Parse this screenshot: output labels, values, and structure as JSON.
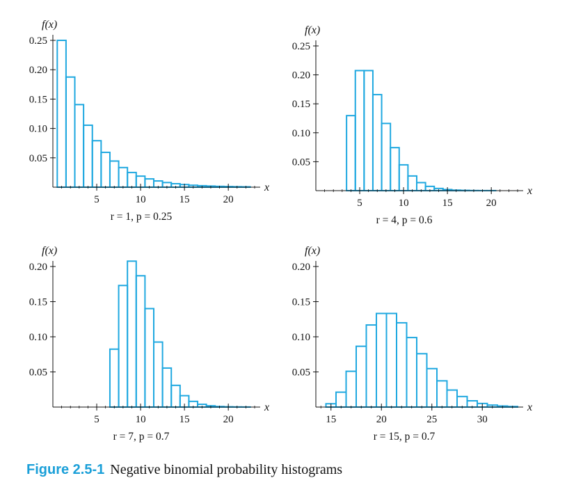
{
  "figure": {
    "label": "Figure 2.5-1",
    "caption": "Negative binomial probability histograms"
  },
  "colors": {
    "bar": "#1fa8e0",
    "axis": "#111111"
  },
  "chart_data": [
    {
      "type": "bar",
      "ylabel": "f(x)",
      "xlabel": "x",
      "subtitle": "r = 1, p = 0.25",
      "xlim": [
        0,
        23
      ],
      "ylim": [
        0,
        0.25
      ],
      "xticks": [
        5,
        10,
        15,
        20
      ],
      "yticks": [
        0.05,
        0.1,
        0.15,
        0.2,
        0.25
      ],
      "ytick_labels": [
        "0.05",
        "0.10",
        "0.15",
        "0.20",
        "0.25"
      ],
      "x": [
        1,
        2,
        3,
        4,
        5,
        6,
        7,
        8,
        9,
        10,
        11,
        12,
        13,
        14,
        15,
        16,
        17,
        18,
        19,
        20,
        21,
        22
      ],
      "values": [
        0.25,
        0.1875,
        0.1406,
        0.1055,
        0.0791,
        0.0593,
        0.0445,
        0.0334,
        0.025,
        0.0188,
        0.0141,
        0.0106,
        0.0079,
        0.0059,
        0.0045,
        0.0033,
        0.0025,
        0.0019,
        0.0014,
        0.0011,
        0.0008,
        0.0006
      ]
    },
    {
      "type": "bar",
      "ylabel": "f(x)",
      "xlabel": "x",
      "subtitle": "r = 4, p = 0.6",
      "xlim": [
        0,
        23
      ],
      "ylim": [
        0,
        0.25
      ],
      "xticks": [
        5,
        10,
        15,
        20
      ],
      "yticks": [
        0.05,
        0.1,
        0.15,
        0.2,
        0.25
      ],
      "ytick_labels": [
        "0.05",
        "0.10",
        "0.15",
        "0.20",
        "0.25"
      ],
      "x": [
        4,
        5,
        6,
        7,
        8,
        9,
        10,
        11,
        12,
        13,
        14,
        15,
        16,
        17,
        18,
        19,
        20
      ],
      "values": [
        0.1296,
        0.2074,
        0.2074,
        0.1659,
        0.1161,
        0.0743,
        0.0446,
        0.0254,
        0.0139,
        0.0074,
        0.0038,
        0.0019,
        0.0009,
        0.0005,
        0.0002,
        0.0001,
        0.0001
      ]
    },
    {
      "type": "bar",
      "ylabel": "f(x)",
      "xlabel": "x",
      "subtitle": "r = 7, p = 0.7",
      "xlim": [
        0,
        23
      ],
      "ylim": [
        0,
        0.2
      ],
      "xticks": [
        5,
        10,
        15,
        20
      ],
      "yticks": [
        0.05,
        0.1,
        0.15,
        0.2
      ],
      "ytick_labels": [
        "0.05",
        "0.10",
        "0.15",
        "0.20"
      ],
      "x": [
        7,
        8,
        9,
        10,
        11,
        12,
        13,
        14,
        15,
        16,
        17,
        18,
        19,
        20,
        21,
        22
      ],
      "values": [
        0.0824,
        0.173,
        0.2076,
        0.1868,
        0.1401,
        0.0925,
        0.0555,
        0.0309,
        0.0162,
        0.0081,
        0.0039,
        0.0018,
        0.0008,
        0.0004,
        0.0002,
        0.0001
      ]
    },
    {
      "type": "bar",
      "ylabel": "f(x)",
      "xlabel": "x",
      "subtitle": "r = 15, p = 0.7",
      "xlim": [
        13.5,
        33.5
      ],
      "ylim": [
        0,
        0.2
      ],
      "xticks": [
        15,
        20,
        25,
        30
      ],
      "yticks": [
        0.05,
        0.1,
        0.15,
        0.2
      ],
      "ytick_labels": [
        "0.05",
        "0.10",
        "0.15",
        "0.20"
      ],
      "x": [
        15,
        16,
        17,
        18,
        19,
        20,
        21,
        22,
        23,
        24,
        25,
        26,
        27,
        28,
        29,
        30,
        31,
        32,
        33
      ],
      "values": [
        0.0047,
        0.0212,
        0.0509,
        0.0865,
        0.1168,
        0.1332,
        0.1332,
        0.1199,
        0.0989,
        0.0759,
        0.0547,
        0.0373,
        0.0242,
        0.015,
        0.0089,
        0.0051,
        0.0028,
        0.0015,
        0.0008
      ]
    }
  ]
}
